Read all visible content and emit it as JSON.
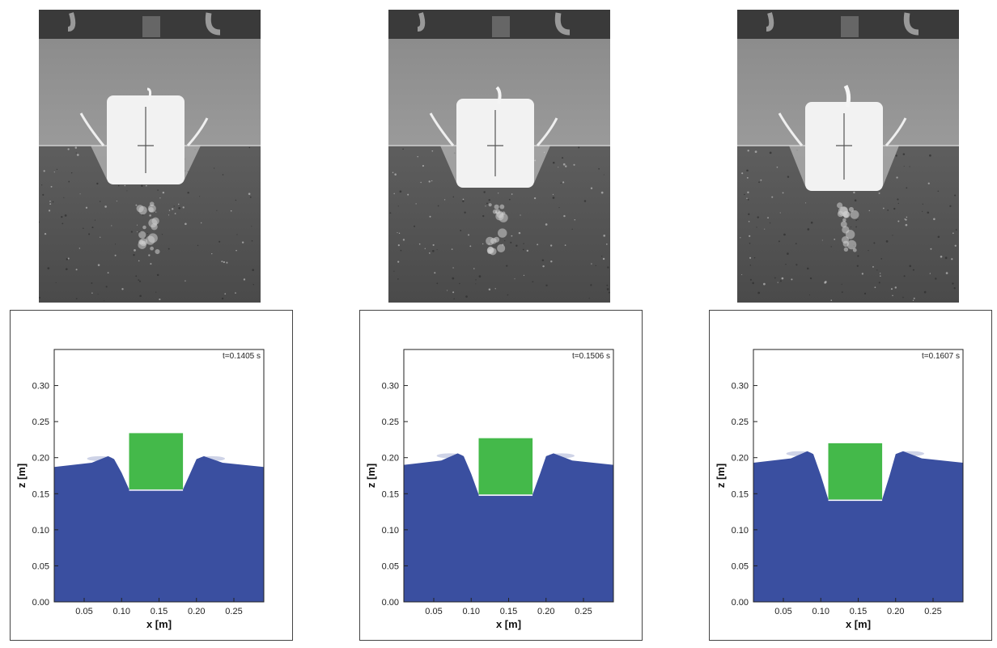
{
  "figure": {
    "panels": [
      {
        "time_label": "t=0.1405 s",
        "left_free_surface_z": 0.187,
        "right_free_surface_z": 0.187,
        "crest_z": 0.202,
        "box_bottom_z": 0.156,
        "box_top_z": 0.234,
        "box_x": [
          0.11,
          0.182
        ]
      },
      {
        "time_label": "t=0.1506 s",
        "left_free_surface_z": 0.19,
        "right_free_surface_z": 0.19,
        "crest_z": 0.206,
        "box_bottom_z": 0.149,
        "box_top_z": 0.227,
        "box_x": [
          0.11,
          0.182
        ]
      },
      {
        "time_label": "t=0.1607 s",
        "left_free_surface_z": 0.193,
        "right_free_surface_z": 0.193,
        "crest_z": 0.209,
        "box_bottom_z": 0.142,
        "box_top_z": 0.22,
        "box_x": [
          0.11,
          0.182
        ]
      }
    ],
    "axes": {
      "xlabel": "x [m]",
      "ylabel": "z [m]",
      "xlim": [
        0.01,
        0.29
      ],
      "ylim": [
        0.0,
        0.35
      ],
      "xticks": [
        "0.05",
        "0.10",
        "0.15",
        "0.20",
        "0.25"
      ],
      "xtick_values": [
        0.05,
        0.1,
        0.15,
        0.2,
        0.25
      ],
      "yticks": [
        "0.00",
        "0.05",
        "0.10",
        "0.15",
        "0.20",
        "0.25",
        "0.30"
      ],
      "ytick_values": [
        0.0,
        0.05,
        0.1,
        0.15,
        0.2,
        0.25,
        0.3
      ]
    },
    "colors": {
      "water": "#3a4fa0",
      "body": "#44b94a",
      "photo_background": "#6b6b6b"
    }
  }
}
